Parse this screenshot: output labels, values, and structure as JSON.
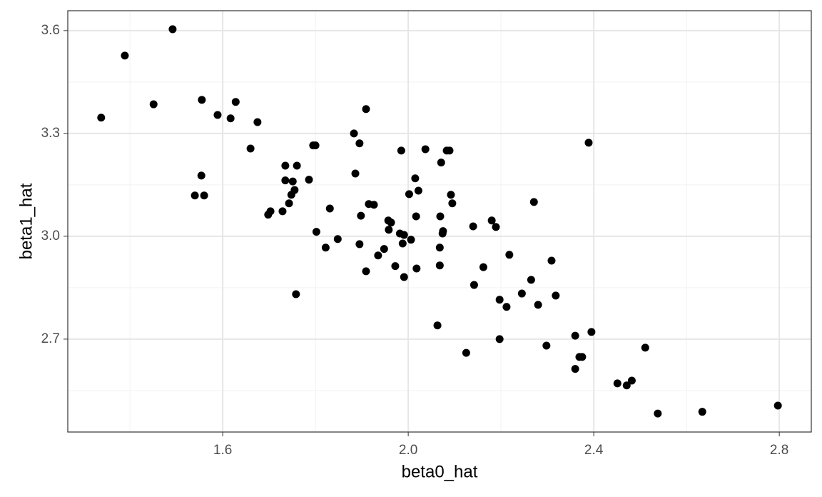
{
  "chart_data": {
    "type": "scatter",
    "xlabel": "beta0_hat",
    "ylabel": "beta1_hat",
    "color": "#000000",
    "x": [
      1.338,
      1.389,
      1.492,
      1.451,
      1.555,
      1.589,
      1.617,
      1.628,
      1.675,
      1.66,
      1.554,
      1.54,
      1.56,
      1.735,
      1.76,
      1.735,
      1.751,
      1.786,
      1.795,
      1.8,
      1.755,
      1.748,
      1.743,
      1.703,
      1.698,
      1.729,
      1.758,
      1.802,
      1.831,
      1.822,
      1.848,
      1.883,
      1.909,
      1.895,
      1.886,
      1.898,
      1.895,
      1.909,
      1.915,
      1.926,
      1.935,
      1.948,
      1.957,
      1.963,
      1.958,
      1.972,
      1.982,
      1.991,
      1.988,
      1.991,
      2.006,
      1.985,
      2.002,
      2.015,
      2.022,
      2.017,
      2.018,
      2.037,
      2.071,
      2.083,
      2.089,
      2.069,
      2.075,
      2.074,
      2.068,
      2.068,
      2.063,
      2.092,
      2.095,
      2.125,
      2.14,
      2.142,
      2.162,
      2.18,
      2.189,
      2.197,
      2.197,
      2.212,
      2.218,
      2.245,
      2.265,
      2.271,
      2.28,
      2.298,
      2.309,
      2.318,
      2.389,
      2.36,
      2.36,
      2.369,
      2.375,
      2.395,
      2.451,
      2.471,
      2.482,
      2.511,
      2.538,
      2.634,
      2.797
    ],
    "y": [
      3.346,
      3.527,
      3.604,
      3.385,
      3.398,
      3.354,
      3.344,
      3.392,
      3.333,
      3.256,
      3.177,
      3.119,
      3.119,
      3.206,
      3.206,
      3.163,
      3.16,
      3.165,
      3.265,
      3.265,
      3.135,
      3.121,
      3.096,
      3.073,
      3.063,
      3.073,
      2.831,
      3.013,
      3.081,
      2.967,
      2.992,
      3.3,
      3.371,
      3.271,
      3.183,
      3.06,
      2.977,
      2.898,
      3.094,
      3.092,
      2.944,
      2.963,
      3.046,
      3.04,
      3.019,
      2.913,
      3.008,
      3.004,
      2.979,
      2.881,
      2.99,
      3.25,
      3.123,
      3.169,
      3.133,
      3.058,
      2.906,
      3.254,
      3.215,
      3.25,
      3.25,
      3.058,
      3.015,
      3.008,
      2.967,
      2.915,
      2.74,
      3.121,
      3.096,
      2.66,
      3.029,
      2.858,
      2.91,
      3.046,
      3.027,
      2.815,
      2.7,
      2.794,
      2.946,
      2.833,
      2.873,
      3.1,
      2.8,
      2.681,
      2.929,
      2.827,
      3.273,
      2.71,
      2.613,
      2.648,
      2.648,
      2.721,
      2.571,
      2.565,
      2.579,
      2.675,
      2.483,
      2.488,
      2.506
    ],
    "xlim": [
      1.266,
      2.869
    ],
    "ylim": [
      2.429,
      3.658
    ],
    "xticks": [
      1.6,
      {
        "value": 2,
        "label": "2.0"
      },
      2.4,
      2.8
    ],
    "yticks": [
      2.7,
      {
        "value": 3,
        "label": "3.0"
      },
      3.3,
      3.6
    ],
    "x_minor_grid": [
      1.4,
      1.8,
      2.2,
      2.6
    ],
    "y_minor_grid": [
      2.55,
      2.85,
      3.15,
      3.45
    ],
    "grid": true
  }
}
